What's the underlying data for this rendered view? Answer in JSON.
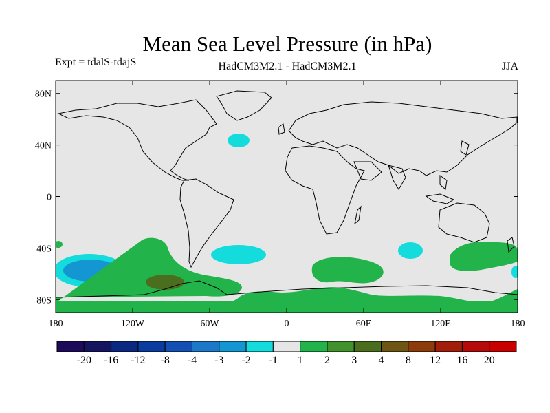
{
  "title": "Mean Sea Level Pressure (in hPa)",
  "subtitle_left": "Expt = tdalS-tdajS",
  "subtitle_center": "HadCM3M2.1 - HadCM3M2.1",
  "subtitle_right": "JJA",
  "map": {
    "lon_range": [
      -180,
      180
    ],
    "lat_range": [
      -90,
      90
    ],
    "projection": "cylindrical equidistant",
    "background_color": "#e6e6e6",
    "coastline_color": "#000000"
  },
  "axes": {
    "lat_ticks": [
      {
        "value": 80,
        "label": "80N"
      },
      {
        "value": 40,
        "label": "40N"
      },
      {
        "value": 0,
        "label": "0"
      },
      {
        "value": -40,
        "label": "40S"
      },
      {
        "value": -80,
        "label": "80S"
      }
    ],
    "lon_ticks": [
      {
        "value": -180,
        "label": "180"
      },
      {
        "value": -120,
        "label": "120W"
      },
      {
        "value": -60,
        "label": "60W"
      },
      {
        "value": 0,
        "label": "0"
      },
      {
        "value": 60,
        "label": "60E"
      },
      {
        "value": 120,
        "label": "120E"
      },
      {
        "value": 180,
        "label": "180"
      }
    ]
  },
  "colorbar": {
    "colors": [
      "#1e0a5a",
      "#14145f",
      "#0a2882",
      "#0a3ca0",
      "#1450b4",
      "#1e78c8",
      "#1496d2",
      "#14dcdc",
      "#e6e6e6",
      "#22b44b",
      "#41912d",
      "#4b6e1e",
      "#6e5514",
      "#8c3c0a",
      "#a01e0a",
      "#b40a0a",
      "#c80000"
    ],
    "labels": [
      "-20",
      "-16",
      "-12",
      "-8",
      "-4",
      "-3",
      "-2",
      "-1",
      "1",
      "2",
      "3",
      "4",
      "8",
      "12",
      "16",
      "20"
    ]
  },
  "chart_data": {
    "type": "heatmap",
    "title": "Mean Sea Level Pressure (in hPa)",
    "variable": "Mean Sea Level Pressure difference",
    "units": "hPa",
    "season": "JJA",
    "levels": [
      -20,
      -16,
      -12,
      -8,
      -4,
      -3,
      -2,
      -1,
      1,
      2,
      3,
      4,
      8,
      12,
      16,
      20
    ],
    "anomaly_regions": [
      {
        "name": "central South Pacific low",
        "center_lon": -150,
        "center_lat": -55,
        "range": "-3 to -2",
        "core": "-3 to -4"
      },
      {
        "name": "South Atlantic low",
        "center_lon": -35,
        "center_lat": -45,
        "range": "-2 to -1"
      },
      {
        "name": "North Atlantic low",
        "center_lon": -35,
        "center_lat": 43,
        "range": "-2 to -1"
      },
      {
        "name": "southern Indian Ocean low",
        "center_lon": 97,
        "center_lat": -42,
        "range": "-2 to -1"
      },
      {
        "name": "eastern South Pacific high",
        "center_lon": -95,
        "center_lat": -62,
        "range": "1 to 2",
        "core": "3 to 4"
      },
      {
        "name": "southern Indian Ocean high",
        "center_lon": 50,
        "center_lat": -58,
        "range": "1 to 2"
      },
      {
        "name": "southwest Pacific high",
        "center_lon": 160,
        "center_lat": -50,
        "range": "1 to 2"
      },
      {
        "name": "Antarctic coast high",
        "center_lon": 0,
        "center_lat": -78,
        "range": "1 to 2"
      }
    ]
  }
}
